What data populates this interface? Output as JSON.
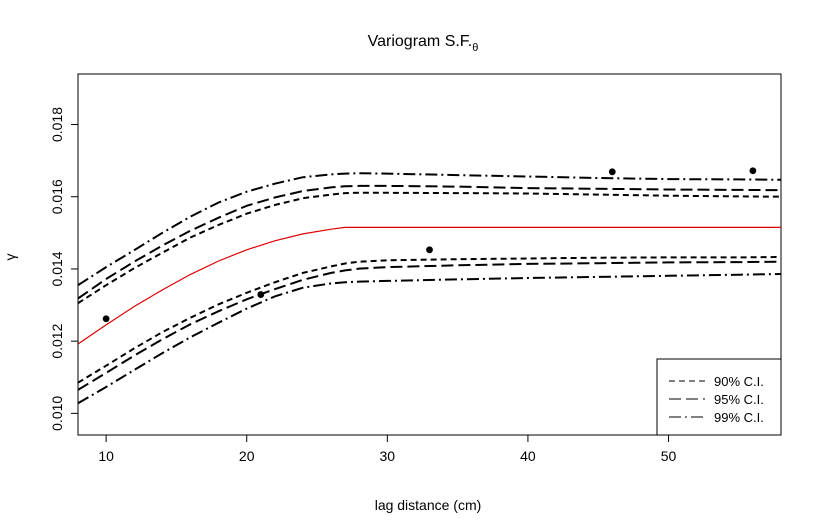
{
  "chart_data": {
    "type": "line",
    "title": "Variogram S.F.",
    "title_subscript": "θ",
    "xlabel": "lag distance (cm)",
    "ylabel": "γ",
    "xlim": [
      8,
      58
    ],
    "ylim": [
      0.0094,
      0.0194
    ],
    "xticks": [
      10,
      20,
      30,
      40,
      50
    ],
    "xtick_labels": [
      "10",
      "20",
      "30",
      "40",
      "50"
    ],
    "yticks": [
      0.01,
      0.012,
      0.014,
      0.016,
      0.018
    ],
    "ytick_labels": [
      "0.010",
      "0.012",
      "0.014",
      "0.016",
      "0.018"
    ],
    "grid": false,
    "legend_position": "bottom-right",
    "x": [
      8,
      10,
      12,
      14,
      16,
      18,
      20,
      22,
      24,
      26,
      27,
      28,
      30,
      35,
      40,
      45,
      50,
      55,
      58
    ],
    "model": {
      "color": "#e00000",
      "values": [
        0.01192,
        0.01245,
        0.01296,
        0.01342,
        0.01385,
        0.01422,
        0.01453,
        0.01478,
        0.01497,
        0.0151,
        0.01515,
        0.01515,
        0.01515,
        0.01515,
        0.01515,
        0.01515,
        0.01515,
        0.01515,
        0.01515
      ]
    },
    "points": [
      {
        "x": 10,
        "y": 0.01262
      },
      {
        "x": 21,
        "y": 0.01329
      },
      {
        "x": 33,
        "y": 0.01453
      },
      {
        "x": 46,
        "y": 0.01669
      },
      {
        "x": 56,
        "y": 0.01672
      }
    ],
    "series": [
      {
        "name": "90% C.I.",
        "dash": "dash-short",
        "upper_values": [
          0.01305,
          0.01355,
          0.01402,
          0.01445,
          0.01487,
          0.01522,
          0.01553,
          0.01577,
          0.01596,
          0.01606,
          0.0161,
          0.01611,
          0.01611,
          0.0161,
          0.01609,
          0.01606,
          0.01603,
          0.01601,
          0.016
        ],
        "lower_values": [
          0.01085,
          0.01132,
          0.0118,
          0.01225,
          0.01265,
          0.01302,
          0.01334,
          0.01363,
          0.01389,
          0.01407,
          0.01415,
          0.0142,
          0.01424,
          0.01427,
          0.01429,
          0.01431,
          0.01432,
          0.01432,
          0.01433
        ]
      },
      {
        "name": "95% C.I.",
        "dash": "dash-long",
        "upper_values": [
          0.01318,
          0.01372,
          0.0142,
          0.01465,
          0.01506,
          0.01542,
          0.01575,
          0.01598,
          0.01616,
          0.01626,
          0.01629,
          0.0163,
          0.0163,
          0.01628,
          0.01624,
          0.01622,
          0.0162,
          0.01619,
          0.01618
        ],
        "lower_values": [
          0.01065,
          0.01112,
          0.0116,
          0.01205,
          0.01247,
          0.01283,
          0.01316,
          0.01344,
          0.0137,
          0.01389,
          0.01396,
          0.01401,
          0.01405,
          0.0141,
          0.01414,
          0.01416,
          0.01418,
          0.01419,
          0.0142
        ]
      },
      {
        "name": "99% C.I.",
        "dash": "dash-dot",
        "upper_values": [
          0.01355,
          0.01405,
          0.01452,
          0.015,
          0.01545,
          0.01584,
          0.01614,
          0.01636,
          0.01654,
          0.01662,
          0.01664,
          0.01665,
          0.01664,
          0.0166,
          0.01656,
          0.01652,
          0.01649,
          0.01648,
          0.01647
        ],
        "lower_values": [
          0.01028,
          0.01073,
          0.0112,
          0.01167,
          0.01211,
          0.01251,
          0.0129,
          0.01324,
          0.01348,
          0.0136,
          0.01363,
          0.01365,
          0.01367,
          0.01371,
          0.01375,
          0.01378,
          0.01381,
          0.01384,
          0.01386
        ]
      }
    ]
  }
}
